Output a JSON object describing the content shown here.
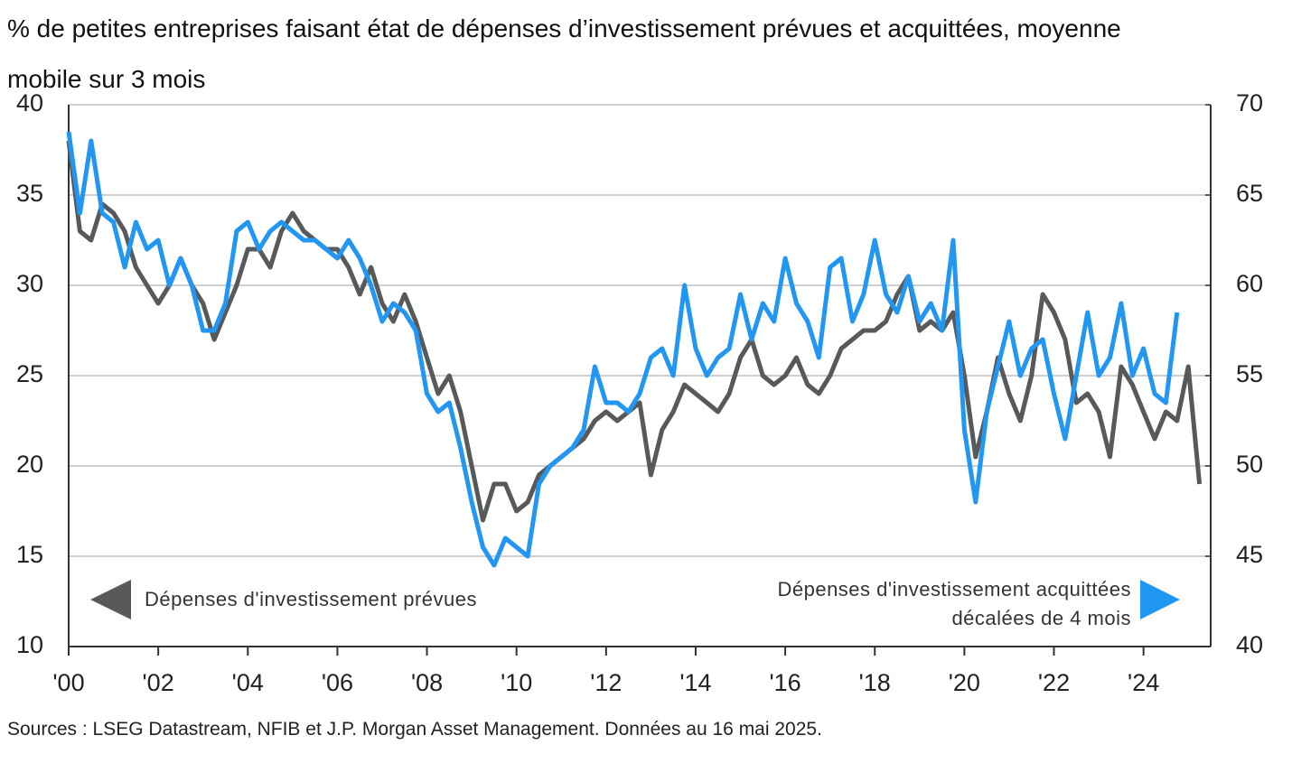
{
  "chart_data": {
    "type": "line",
    "title": "% de petites entreprises faisant état de dépenses d’investissement prévues et acquittées, moyenne mobile sur 3 mois",
    "source": "Sources : LSEG Datastream, NFIB et J.P. Morgan Asset Management. Données au 16 mai 2025.",
    "x": [
      2000,
      2000.25,
      2000.5,
      2000.75,
      2001,
      2001.25,
      2001.5,
      2001.75,
      2002,
      2002.25,
      2002.5,
      2002.75,
      2003,
      2003.25,
      2003.5,
      2003.75,
      2004,
      2004.25,
      2004.5,
      2004.75,
      2005,
      2005.25,
      2005.5,
      2005.75,
      2006,
      2006.25,
      2006.5,
      2006.75,
      2007,
      2007.25,
      2007.5,
      2007.75,
      2008,
      2008.25,
      2008.5,
      2008.75,
      2009,
      2009.25,
      2009.5,
      2009.75,
      2010,
      2010.25,
      2010.5,
      2010.75,
      2011,
      2011.25,
      2011.5,
      2011.75,
      2012,
      2012.25,
      2012.5,
      2012.75,
      2013,
      2013.25,
      2013.5,
      2013.75,
      2014,
      2014.25,
      2014.5,
      2014.75,
      2015,
      2015.25,
      2015.5,
      2015.75,
      2016,
      2016.25,
      2016.5,
      2016.75,
      2017,
      2017.25,
      2017.5,
      2017.75,
      2018,
      2018.25,
      2018.5,
      2018.75,
      2019,
      2019.25,
      2019.5,
      2019.75,
      2020,
      2020.25,
      2020.5,
      2020.75,
      2021,
      2021.25,
      2021.5,
      2021.75,
      2022,
      2022.25,
      2022.5,
      2022.75,
      2023,
      2023.25,
      2023.5,
      2023.75,
      2024,
      2024.25,
      2024.5,
      2024.75,
      2025,
      2025.25
    ],
    "xlim": [
      2000,
      2025.5
    ],
    "xticks": [
      {
        "value": 2000,
        "label": "'00"
      },
      {
        "value": 2002,
        "label": "'02"
      },
      {
        "value": 2004,
        "label": "'04"
      },
      {
        "value": 2006,
        "label": "'06"
      },
      {
        "value": 2008,
        "label": "'08"
      },
      {
        "value": 2010,
        "label": "'10"
      },
      {
        "value": 2012,
        "label": "'12"
      },
      {
        "value": 2014,
        "label": "'14"
      },
      {
        "value": 2016,
        "label": "'16"
      },
      {
        "value": 2018,
        "label": "'18"
      },
      {
        "value": 2020,
        "label": "'20"
      },
      {
        "value": 2022,
        "label": "'22"
      },
      {
        "value": 2024,
        "label": "'24"
      }
    ],
    "ylim": [
      10,
      40
    ],
    "yticks": [
      10,
      15,
      20,
      25,
      30,
      35,
      40
    ],
    "y2lim": [
      40,
      70
    ],
    "y2ticks": [
      40,
      45,
      50,
      55,
      60,
      65,
      70
    ],
    "grid": true,
    "series": [
      {
        "name": "Dépenses d'investissement prévues",
        "color": "#58595b",
        "values": [
          38,
          33,
          32.5,
          34.5,
          34,
          33,
          31,
          30,
          29,
          30,
          31.5,
          30,
          29,
          27,
          28.5,
          30,
          32,
          32,
          31,
          33,
          34,
          33,
          32.5,
          32,
          32,
          31,
          29.5,
          31,
          29,
          28,
          29.5,
          28,
          26,
          24,
          25,
          23,
          20,
          17,
          19,
          19,
          17.5,
          18,
          19.5,
          20,
          20.5,
          21,
          21.5,
          22.5,
          23,
          22.5,
          23,
          23.5,
          19.5,
          22,
          23,
          24.5,
          24,
          23.5,
          23,
          24,
          26,
          27,
          25,
          24.5,
          25,
          26,
          24.5,
          24,
          25,
          26.5,
          27,
          27.5,
          27.5,
          28,
          29.5,
          30.5,
          27.5,
          28,
          27.5,
          28.5,
          25,
          20.5,
          23,
          26,
          24,
          22.5,
          25,
          29.5,
          28.5,
          27,
          23.5,
          24,
          23,
          20.5,
          25.5,
          24.5,
          23,
          21.5,
          23,
          22.5,
          25.5,
          19
        ]
      },
      {
        "name": "Dépenses d'investissement acquittées décalées de 4 mois",
        "color": "#2196f3",
        "axis": "y2",
        "values": [
          68.5,
          64,
          68,
          64,
          63.5,
          61,
          63.5,
          62,
          62.5,
          60,
          61.5,
          60,
          57.5,
          57.5,
          59,
          63,
          63.5,
          62,
          63,
          63.5,
          63,
          62.5,
          62.5,
          62,
          61.5,
          62.5,
          61.5,
          60,
          58,
          59,
          58.5,
          57.5,
          54,
          53,
          53.5,
          51,
          48,
          45.5,
          44.5,
          46,
          45.5,
          45,
          49,
          50,
          50.5,
          51,
          52,
          55.5,
          53.5,
          53.5,
          53,
          54,
          56,
          56.5,
          55,
          60,
          56.5,
          55,
          56,
          56.5,
          59.5,
          57,
          59,
          58,
          61.5,
          59,
          58,
          56,
          61,
          61.5,
          58,
          59.5,
          62.5,
          59.5,
          58.5,
          60.5,
          58,
          59,
          57.5,
          62.5,
          52,
          48,
          53,
          55.5,
          58,
          55,
          56.5,
          57,
          54,
          51.5,
          55,
          58.5,
          55,
          56,
          59,
          55,
          56.5,
          54,
          53.5,
          58.5,
          null,
          null
        ]
      }
    ]
  }
}
